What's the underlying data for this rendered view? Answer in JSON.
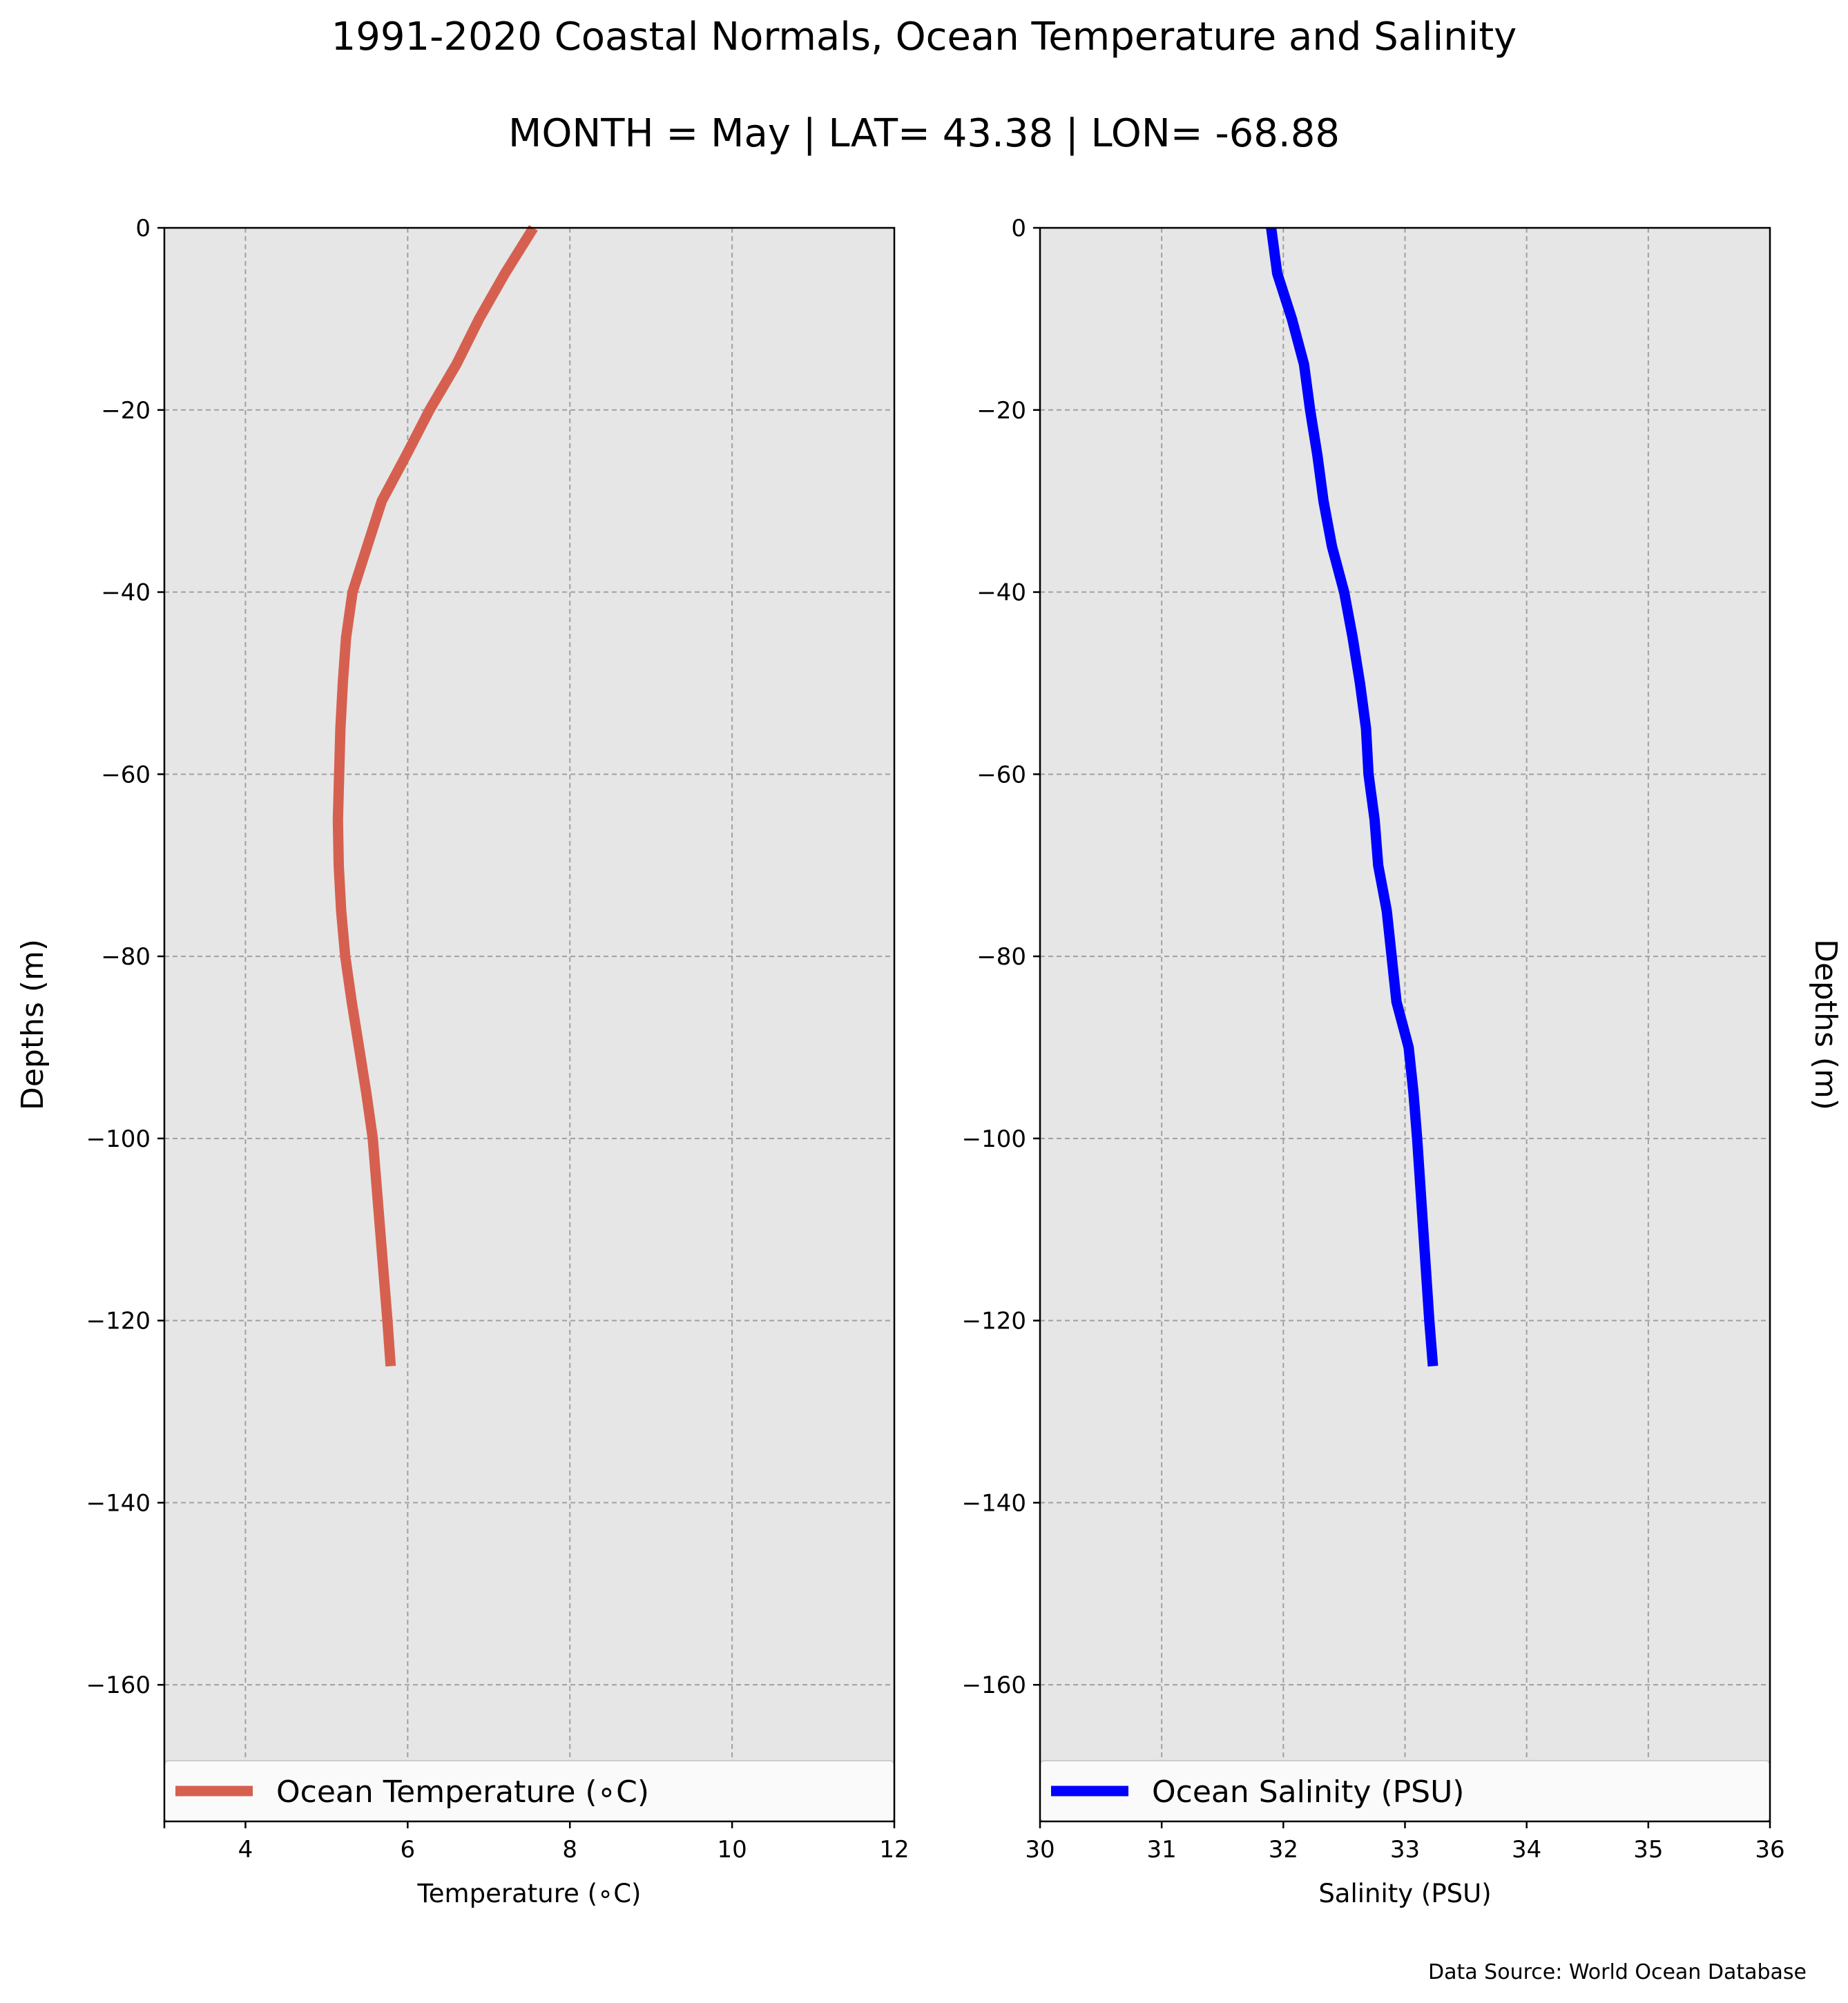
{
  "figure": {
    "title": "1991-2020 Coastal Normals, Ocean Temperature and Salinity",
    "subtitle": "MONTH = May | LAT= 43.38 | LON= -68.88",
    "source_note": "Data Source: World Ocean Database"
  },
  "chart_data": [
    {
      "type": "line",
      "xlabel": "Temperature ($^\\circ$C)",
      "xlabel_display": "Temperature (∘C)",
      "ylabel": "Depths (m)",
      "ylabel_side": "left",
      "xlim": [
        3,
        12
      ],
      "ylim": [
        -175,
        0
      ],
      "xticks": [
        4,
        6,
        8,
        10,
        12
      ],
      "yticks": [
        0,
        -20,
        -40,
        -60,
        -80,
        -100,
        -120,
        -140,
        -160
      ],
      "grid": true,
      "background": "#e6e6e6",
      "legend": {
        "placement": "bottom",
        "entries": [
          "Ocean Temperature (∘C)"
        ]
      },
      "series": [
        {
          "name": "Ocean Temperature (∘C)",
          "color": "#d66050",
          "x": [
            7.55,
            7.2,
            6.88,
            6.6,
            6.27,
            5.98,
            5.68,
            5.5,
            5.32,
            5.24,
            5.2,
            5.17,
            5.14,
            5.15,
            5.18,
            5.23,
            5.31,
            5.4,
            5.49,
            5.57,
            5.66,
            5.75,
            5.79
          ],
          "y": [
            0,
            -5,
            -10,
            -15,
            -20,
            -25,
            -30,
            -35,
            -40,
            -45,
            -50,
            -55,
            -65,
            -70,
            -75,
            -80,
            -85,
            -90,
            -95,
            -100,
            -110,
            -120,
            -125
          ]
        }
      ]
    },
    {
      "type": "line",
      "xlabel": "Salinity (PSU)",
      "ylabel": "Depths (m)",
      "ylabel_side": "right",
      "xlim": [
        30,
        36
      ],
      "ylim": [
        -175,
        0
      ],
      "xticks": [
        30,
        31,
        32,
        33,
        34,
        35,
        36
      ],
      "yticks": [
        0,
        -20,
        -40,
        -60,
        -80,
        -100,
        -120,
        -140,
        -160
      ],
      "grid": true,
      "background": "#e6e6e6",
      "legend": {
        "placement": "bottom",
        "entries": [
          "Ocean Salinity (PSU)"
        ]
      },
      "series": [
        {
          "name": "Ocean Salinity (PSU)",
          "color": "#0000ff",
          "x": [
            31.9,
            31.95,
            32.07,
            32.17,
            32.22,
            32.28,
            32.33,
            32.4,
            32.5,
            32.57,
            32.63,
            32.68,
            32.7,
            32.75,
            32.78,
            32.85,
            32.93,
            33.03,
            33.07,
            33.1,
            33.15,
            33.2,
            33.23
          ],
          "y": [
            0,
            -5,
            -10,
            -15,
            -20,
            -25,
            -30,
            -35,
            -40,
            -45,
            -50,
            -55,
            -60,
            -65,
            -70,
            -75,
            -85,
            -90,
            -95,
            -100,
            -110,
            -120,
            -125
          ]
        }
      ]
    }
  ]
}
